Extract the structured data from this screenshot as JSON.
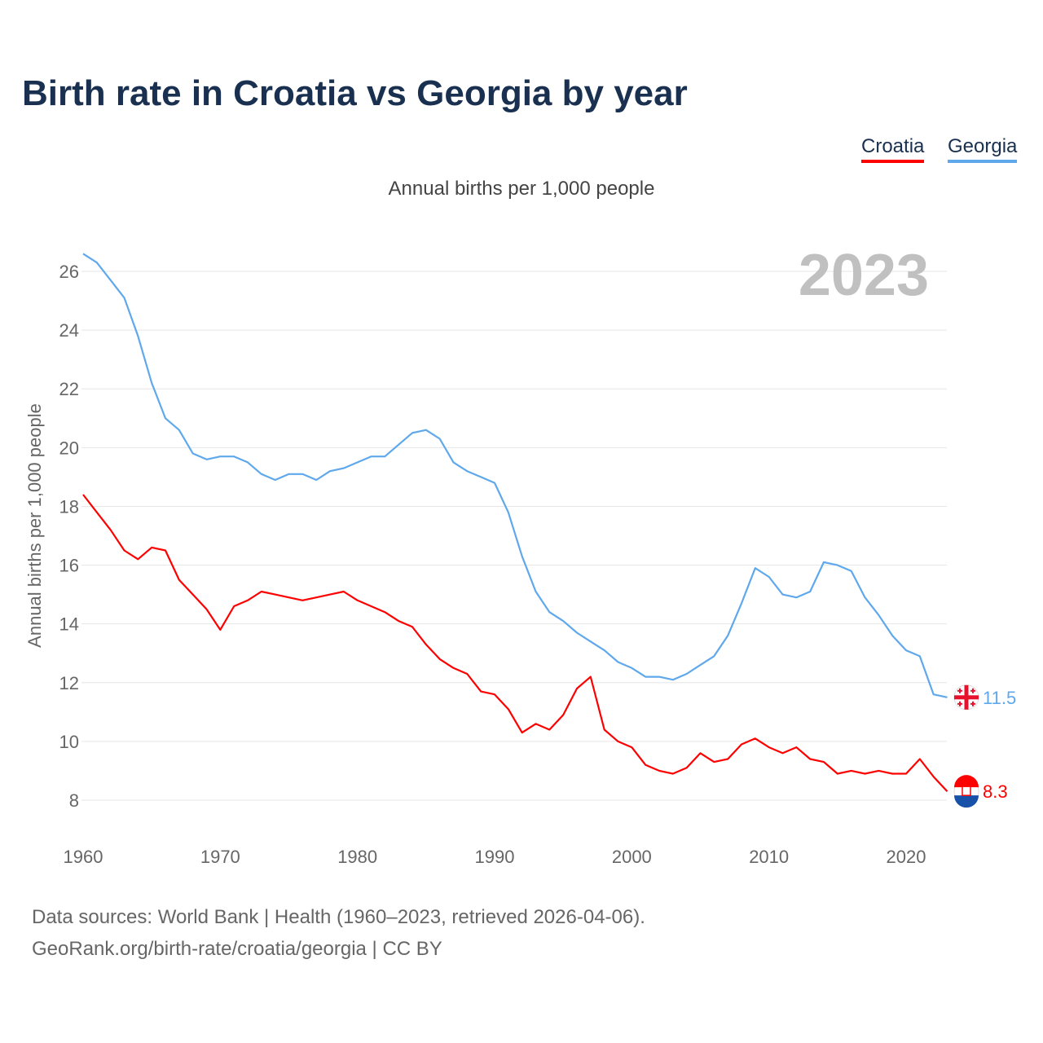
{
  "title": "Birth rate in Croatia vs Georgia by year",
  "source_line1": "Data sources: World Bank | Health (1960–2023, retrieved 2026-04-06).",
  "source_line2": "GeoRank.org/birth-rate/croatia/georgia | CC BY",
  "chart_data": {
    "type": "line",
    "title": "Birth rate in Croatia vs Georgia by year",
    "subtitle": "Annual births per 1,000 people",
    "ylabel": "Annual births per 1,000 people",
    "xlabel": "",
    "year_label": "2023",
    "xlim": [
      1960,
      2023
    ],
    "ylim": [
      7,
      27
    ],
    "xticks": [
      "1960",
      "1970",
      "1980",
      "1990",
      "2000",
      "2010",
      "2020"
    ],
    "yticks": [
      "8",
      "10",
      "12",
      "14",
      "16",
      "18",
      "20",
      "22",
      "24",
      "26"
    ],
    "grid": true,
    "legend_position": "top-right",
    "series": [
      {
        "name": "Croatia",
        "color": "#ff0000",
        "end_label": "8.3",
        "flag": "croatia",
        "values": [
          18.4,
          17.8,
          17.2,
          16.5,
          16.2,
          16.6,
          16.5,
          15.5,
          15.0,
          14.5,
          13.8,
          14.6,
          14.8,
          15.1,
          15.0,
          14.9,
          14.8,
          14.9,
          15.0,
          15.1,
          14.8,
          14.6,
          14.4,
          14.1,
          13.9,
          13.3,
          12.8,
          12.5,
          12.3,
          11.7,
          11.6,
          11.1,
          10.3,
          10.6,
          10.4,
          10.9,
          11.8,
          12.2,
          10.4,
          10.0,
          9.8,
          9.2,
          9.0,
          8.9,
          9.1,
          9.6,
          9.3,
          9.4,
          9.9,
          10.1,
          9.8,
          9.6,
          9.8,
          9.4,
          9.3,
          8.9,
          9.0,
          8.9,
          9.0,
          8.9,
          8.9,
          9.4,
          8.8,
          8.3
        ]
      },
      {
        "name": "Georgia",
        "color": "#5fa8ec",
        "end_label": "11.5",
        "flag": "georgia",
        "values": [
          26.6,
          26.3,
          25.7,
          25.1,
          23.8,
          22.2,
          21.0,
          20.6,
          19.8,
          19.6,
          19.7,
          19.7,
          19.5,
          19.1,
          18.9,
          19.1,
          19.1,
          18.9,
          19.2,
          19.3,
          19.5,
          19.7,
          19.7,
          20.1,
          20.5,
          20.6,
          20.3,
          19.5,
          19.2,
          19.0,
          18.8,
          17.8,
          16.3,
          15.1,
          14.4,
          14.1,
          13.7,
          13.4,
          13.1,
          12.7,
          12.5,
          12.2,
          12.2,
          12.1,
          12.3,
          12.6,
          12.9,
          13.6,
          14.7,
          15.9,
          15.6,
          15.0,
          14.9,
          15.1,
          16.1,
          16.0,
          15.8,
          14.9,
          14.3,
          13.6,
          13.1,
          12.9,
          11.6,
          11.5
        ]
      }
    ]
  }
}
